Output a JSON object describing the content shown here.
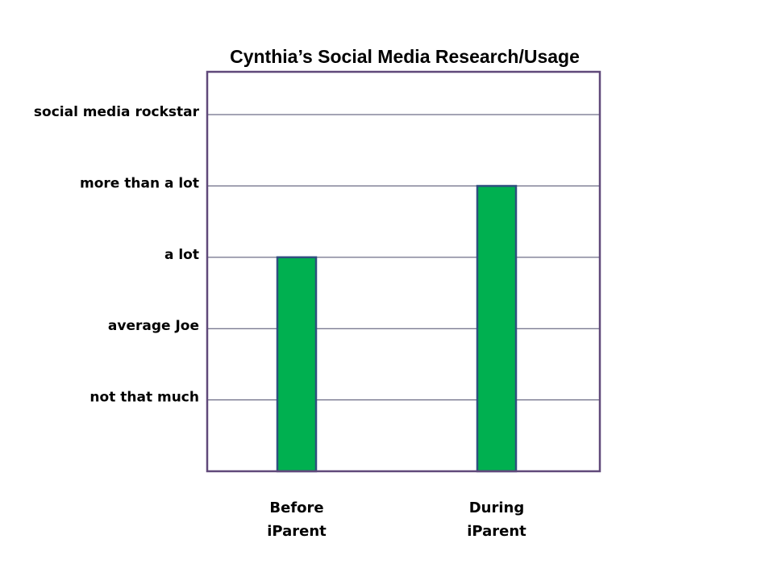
{
  "chart_data": {
    "type": "bar",
    "title": "Cynthia’s Social Media Research/Usage",
    "xlabel": "",
    "ylabel": "",
    "categories": [
      [
        "Before",
        "iParent"
      ],
      [
        "During",
        "iParent"
      ]
    ],
    "values": [
      3,
      4
    ],
    "y_ticks": [
      {
        "value": 1,
        "label": "not that much"
      },
      {
        "value": 2,
        "label": "average Joe"
      },
      {
        "value": 3,
        "label": "a lot"
      },
      {
        "value": 4,
        "label": "more than a lot"
      },
      {
        "value": 5,
        "label": "social media rockstar"
      }
    ],
    "ylim": [
      0,
      5.6
    ],
    "grid": true,
    "legend": "none",
    "colors": {
      "bar_fill": "#00b050",
      "bar_stroke": "#2f4f7f",
      "plot_border": "#60497a",
      "grid": "#4a4a6a"
    }
  }
}
